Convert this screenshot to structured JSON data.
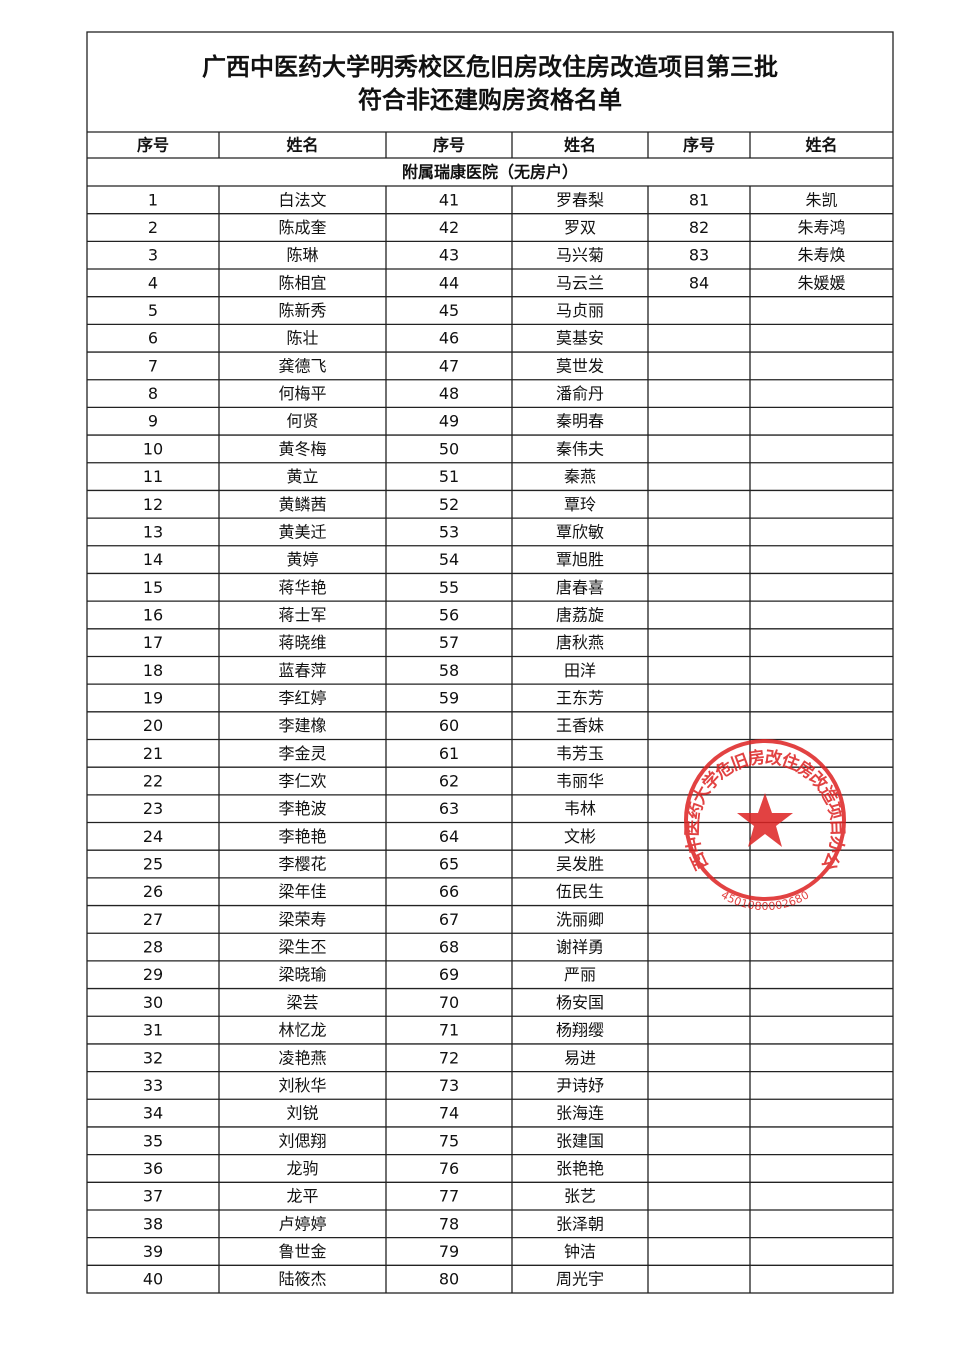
{
  "title_lines": [
    "广西中医药大学明秀校区危旧房改住房改造项目第三批",
    "符合非还建购房资格名单"
  ],
  "header": [
    "序号",
    "姓名",
    "序号",
    "姓名",
    "序号",
    "姓名"
  ],
  "section": "附属瑞康医院（无房户）",
  "rows": [
    [
      1,
      "白法文",
      41,
      "罗春梨",
      81,
      "朱凯"
    ],
    [
      2,
      "陈成奎",
      42,
      "罗双",
      82,
      "朱寿鸿"
    ],
    [
      3,
      "陈琳",
      43,
      "马兴菊",
      83,
      "朱寿焕"
    ],
    [
      4,
      "陈相宜",
      44,
      "马云兰",
      84,
      "朱媛媛"
    ],
    [
      5,
      "陈新秀",
      45,
      "马贞丽"
    ],
    [
      6,
      "陈壮",
      46,
      "莫基安"
    ],
    [
      7,
      "龚德飞",
      47,
      "莫世发"
    ],
    [
      8,
      "何梅平",
      48,
      "潘俞丹"
    ],
    [
      9,
      "何贤",
      49,
      "秦明春"
    ],
    [
      10,
      "黄冬梅",
      50,
      "秦伟夫"
    ],
    [
      11,
      "黄立",
      51,
      "秦燕"
    ],
    [
      12,
      "黄鳞茜",
      52,
      "覃玲"
    ],
    [
      13,
      "黄美迁",
      53,
      "覃欣敏"
    ],
    [
      14,
      "黄婷",
      54,
      "覃旭胜"
    ],
    [
      15,
      "蒋华艳",
      55,
      "唐春喜"
    ],
    [
      16,
      "蒋士军",
      56,
      "唐荔旋"
    ],
    [
      17,
      "蒋晓维",
      57,
      "唐秋燕"
    ],
    [
      18,
      "蓝春萍",
      58,
      "田洋"
    ],
    [
      19,
      "李红婷",
      59,
      "王东芳"
    ],
    [
      20,
      "李建橡",
      60,
      "王香妹"
    ],
    [
      21,
      "李金灵",
      61,
      "韦芳玉"
    ],
    [
      22,
      "李仁欢",
      62,
      "韦丽华"
    ],
    [
      23,
      "李艳波",
      63,
      "韦林"
    ],
    [
      24,
      "李艳艳",
      64,
      "文彬"
    ],
    [
      25,
      "李樱花",
      65,
      "吴发胜"
    ],
    [
      26,
      "梁年佳",
      66,
      "伍民生"
    ],
    [
      27,
      "梁荣寿",
      67,
      "洗丽卿"
    ],
    [
      28,
      "梁生丕",
      68,
      "谢祥勇"
    ],
    [
      29,
      "梁晓瑜",
      69,
      "严丽"
    ],
    [
      30,
      "梁芸",
      70,
      "杨安国"
    ],
    [
      31,
      "林忆龙",
      71,
      "杨翔缨"
    ],
    [
      32,
      "凌艳燕",
      72,
      "易进"
    ],
    [
      33,
      "刘秋华",
      73,
      "尹诗妤"
    ],
    [
      34,
      "刘锐",
      74,
      "张海连"
    ],
    [
      35,
      "刘偲翔",
      75,
      "张建国"
    ],
    [
      36,
      "龙驹",
      76,
      "张艳艳"
    ],
    [
      37,
      "龙平",
      77,
      "张艺"
    ],
    [
      38,
      "卢婷婷",
      78,
      "张泽朝"
    ],
    [
      39,
      "鲁世金",
      79,
      "钟洁"
    ],
    [
      40,
      "陆筱杰",
      80,
      "周光宇"
    ]
  ],
  "stamp": {
    "name": "广西中医药大学危旧房改住房改造项目办公室",
    "code": "4501080002680"
  }
}
